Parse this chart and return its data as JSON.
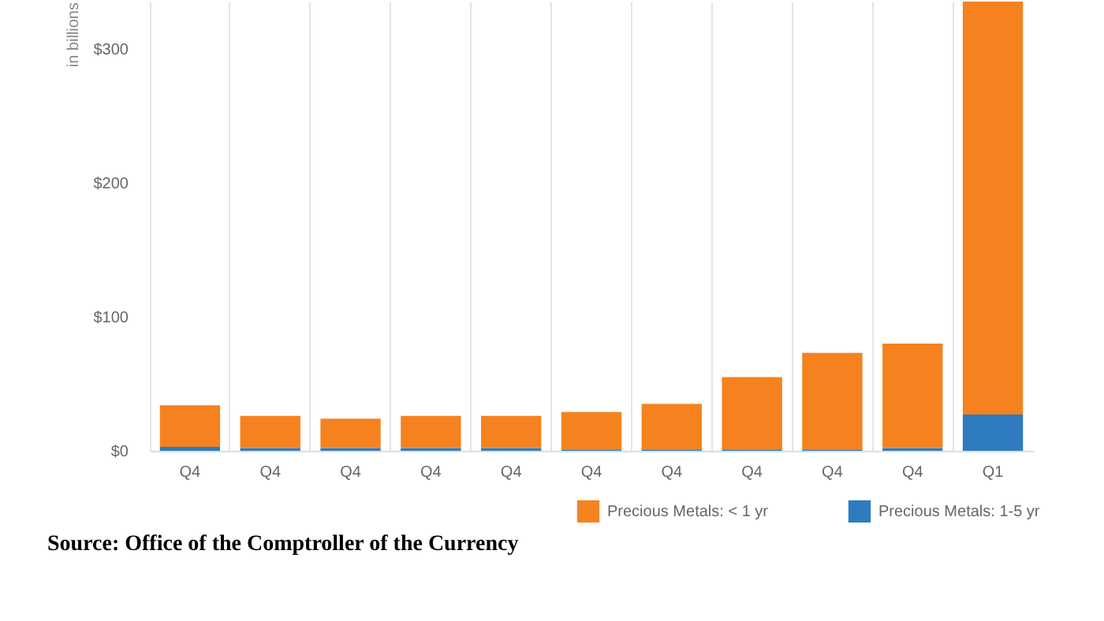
{
  "chart_data": {
    "type": "bar",
    "stacked": true,
    "ylabel": "in billions",
    "categories": [
      "Q4",
      "Q4",
      "Q4",
      "Q4",
      "Q4",
      "Q4",
      "Q4",
      "Q4",
      "Q4",
      "Q4",
      "Q1"
    ],
    "series": [
      {
        "name": "Precious Metals: 1-5 yr",
        "color": "#2e7bbf",
        "values": [
          3,
          2,
          2,
          2,
          2,
          1,
          1,
          1,
          1,
          2,
          27
        ]
      },
      {
        "name": "Precious Metals: < 1 yr",
        "color": "#f5821f",
        "values": [
          31,
          24,
          22,
          24,
          24,
          28,
          34,
          54,
          72,
          78,
          308
        ]
      }
    ],
    "ylim": [
      0,
      335
    ],
    "yticks": [
      {
        "value": 0,
        "label": "$0"
      },
      {
        "value": 100,
        "label": "$100"
      },
      {
        "value": 200,
        "label": "$200"
      },
      {
        "value": 300,
        "label": "$300"
      }
    ],
    "grid": "x",
    "legend": "bottom right",
    "annotations": [
      "Source: Office of the Comptroller of the Currency"
    ]
  }
}
